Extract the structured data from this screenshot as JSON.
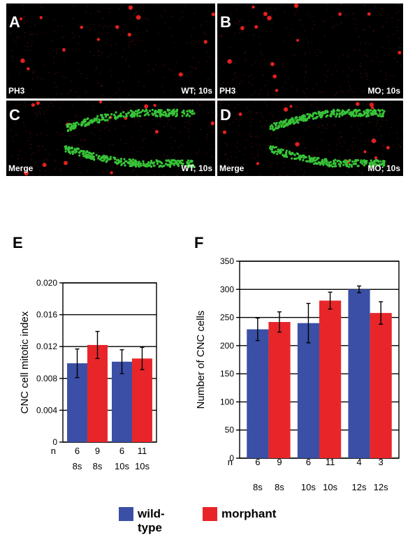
{
  "micrographs": [
    {
      "letter": "A",
      "stain": "PH3",
      "condition": "WT; 10s"
    },
    {
      "letter": "B",
      "stain": "PH3",
      "condition": "MO; 10s"
    },
    {
      "letter": "C",
      "stain": "Merge",
      "condition": "WT; 10s"
    },
    {
      "letter": "D",
      "stain": "Merge",
      "condition": "MO; 10s"
    }
  ],
  "colors": {
    "wild_type": "#3a4fa5",
    "morphant": "#e8262a",
    "nuclei": "#e0201e",
    "cnc": "#37c337"
  },
  "legend": {
    "wild_type": "wild-type",
    "morphant": "morphant"
  },
  "chart_data": [
    {
      "panel": "E",
      "type": "bar",
      "ylabel": "CNC cell mitotic index",
      "ylim": [
        0,
        0.02
      ],
      "yticks": [
        "0",
        "0.004",
        "0.008",
        "0.012",
        "0.016",
        "0.020"
      ],
      "grid": true,
      "n_label": "n",
      "categories": [
        "8s",
        "8s",
        "10s",
        "10s"
      ],
      "n": [
        "6",
        "9",
        "6",
        "11"
      ],
      "groups": [
        "wild-type",
        "morphant",
        "wild-type",
        "morphant"
      ],
      "values": [
        0.0099,
        0.0122,
        0.0101,
        0.0105
      ],
      "errors": [
        0.0018,
        0.0017,
        0.0015,
        0.0014
      ]
    },
    {
      "panel": "F",
      "type": "bar",
      "ylabel": "Number of CNC cells",
      "ylim": [
        0,
        350
      ],
      "yticks": [
        "0",
        "50",
        "100",
        "150",
        "200",
        "250",
        "300",
        "350"
      ],
      "grid": true,
      "n_label": "n",
      "categories": [
        "8s",
        "8s",
        "10s",
        "10s",
        "12s",
        "12s"
      ],
      "n": [
        "6",
        "9",
        "6",
        "11",
        "4",
        "3"
      ],
      "groups": [
        "wild-type",
        "morphant",
        "wild-type",
        "morphant",
        "wild-type",
        "morphant"
      ],
      "values": [
        229,
        242,
        240,
        280,
        300,
        258
      ],
      "errors": [
        20,
        18,
        35,
        15,
        6,
        20
      ]
    }
  ]
}
